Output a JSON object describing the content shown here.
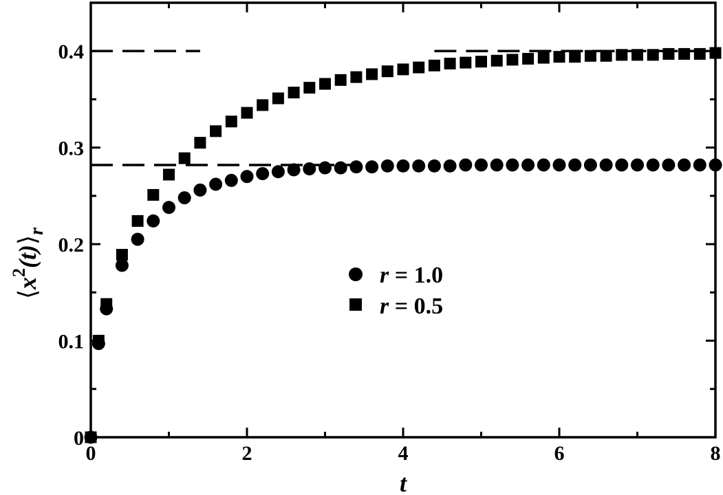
{
  "chart_data": {
    "type": "scatter",
    "xlabel": "t",
    "ylabel": {
      "open": "⟨",
      "var": "x",
      "sup": "2",
      "arg": "(t)",
      "close": "⟩",
      "sub": "r"
    },
    "xlim": [
      0,
      8
    ],
    "ylim": [
      0,
      0.45
    ],
    "x_ticks": [
      0,
      2,
      4,
      6,
      8
    ],
    "x_tick_labels": [
      "0",
      "2",
      "4",
      "6",
      "8"
    ],
    "y_ticks": [
      0,
      0.1,
      0.2,
      0.3,
      0.4
    ],
    "y_tick_labels": [
      "0",
      "0.1",
      "0.2",
      "0.3",
      "0.4"
    ],
    "grid": false,
    "legend_position": "center",
    "series": [
      {
        "name": "r = 1.0",
        "label_var": "r",
        "label_rest": " = 1.0",
        "marker": "circle",
        "color": "#000000",
        "x": [
          0,
          0.1,
          0.2,
          0.4,
          0.6,
          0.8,
          1.0,
          1.2,
          1.4,
          1.6,
          1.8,
          2.0,
          2.2,
          2.4,
          2.6,
          2.8,
          3.0,
          3.2,
          3.4,
          3.6,
          3.8,
          4.0,
          4.2,
          4.4,
          4.6,
          4.8,
          5.0,
          5.2,
          5.4,
          5.6,
          5.8,
          6.0,
          6.2,
          6.4,
          6.6,
          6.8,
          7.0,
          7.2,
          7.4,
          7.6,
          7.8,
          8.0
        ],
        "y": [
          0,
          0.097,
          0.133,
          0.178,
          0.205,
          0.224,
          0.238,
          0.248,
          0.256,
          0.262,
          0.266,
          0.27,
          0.273,
          0.275,
          0.277,
          0.278,
          0.279,
          0.279,
          0.28,
          0.28,
          0.281,
          0.281,
          0.281,
          0.281,
          0.281,
          0.282,
          0.282,
          0.282,
          0.282,
          0.282,
          0.282,
          0.282,
          0.282,
          0.282,
          0.282,
          0.282,
          0.282,
          0.282,
          0.282,
          0.282,
          0.282,
          0.282
        ]
      },
      {
        "name": "r = 0.5",
        "label_var": "r",
        "label_rest": " = 0.5",
        "marker": "square",
        "color": "#000000",
        "x": [
          0,
          0.1,
          0.2,
          0.4,
          0.6,
          0.8,
          1.0,
          1.2,
          1.4,
          1.6,
          1.8,
          2.0,
          2.2,
          2.4,
          2.6,
          2.8,
          3.0,
          3.2,
          3.4,
          3.6,
          3.8,
          4.0,
          4.2,
          4.4,
          4.6,
          4.8,
          5.0,
          5.2,
          5.4,
          5.6,
          5.8,
          6.0,
          6.2,
          6.4,
          6.6,
          6.8,
          7.0,
          7.2,
          7.4,
          7.6,
          7.8,
          8.0
        ],
        "y": [
          0,
          0.1,
          0.138,
          0.189,
          0.224,
          0.251,
          0.272,
          0.289,
          0.305,
          0.317,
          0.327,
          0.336,
          0.344,
          0.351,
          0.357,
          0.362,
          0.366,
          0.37,
          0.373,
          0.376,
          0.379,
          0.381,
          0.383,
          0.385,
          0.387,
          0.388,
          0.389,
          0.39,
          0.391,
          0.392,
          0.393,
          0.394,
          0.394,
          0.395,
          0.395,
          0.396,
          0.396,
          0.396,
          0.397,
          0.397,
          0.397,
          0.398
        ]
      }
    ],
    "reference_lines": [
      {
        "y": 0.4,
        "style": "dashed",
        "x_range": [
          0,
          1.4
        ]
      },
      {
        "y": 0.4,
        "style": "dashed",
        "x_range": [
          4.4,
          8
        ]
      },
      {
        "y": 0.282,
        "style": "dashed",
        "x_range": [
          0,
          3.4
        ]
      }
    ]
  }
}
